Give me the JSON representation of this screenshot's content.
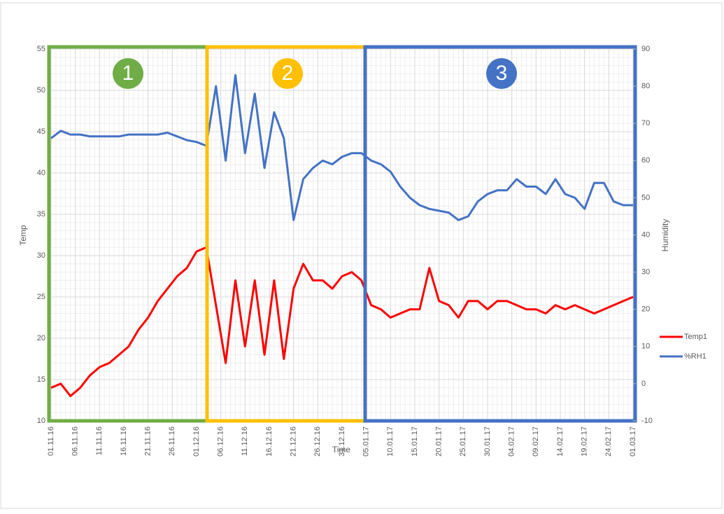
{
  "chart_data": {
    "type": "line",
    "x_label": "Time",
    "y_label": "Temp",
    "y2_label": "Humidity",
    "x": [
      "01.11.16",
      "03.11.16",
      "05.11.16",
      "07.11.16",
      "09.11.16",
      "11.11.16",
      "13.11.16",
      "15.11.16",
      "17.11.16",
      "19.11.16",
      "21.11.16",
      "23.11.16",
      "25.11.16",
      "27.11.16",
      "29.11.16",
      "01.12.16",
      "03.12.16",
      "05.12.16",
      "07.12.16",
      "09.12.16",
      "11.12.16",
      "13.12.16",
      "15.12.16",
      "17.12.16",
      "19.12.16",
      "21.12.16",
      "23.12.16",
      "25.12.16",
      "27.12.16",
      "29.12.16",
      "31.12.16",
      "02.01.17",
      "04.01.17",
      "06.01.17",
      "08.01.17",
      "10.01.17",
      "12.01.17",
      "14.01.17",
      "16.01.17",
      "18.01.17",
      "20.01.17",
      "22.01.17",
      "24.01.17",
      "26.01.17",
      "28.01.17",
      "30.01.17",
      "01.02.17",
      "03.02.17",
      "05.02.17",
      "07.02.17",
      "09.02.17",
      "11.02.17",
      "13.02.17",
      "15.02.17",
      "17.02.17",
      "19.02.17",
      "21.02.17",
      "23.02.17",
      "25.02.17",
      "27.02.17",
      "01.03.17"
    ],
    "series": [
      {
        "name": "Temp1",
        "color": "#ff0000",
        "axis": "y",
        "values": [
          14,
          14.5,
          13,
          14,
          15.5,
          16.5,
          17,
          18,
          19,
          21,
          22.5,
          24.5,
          26,
          27.5,
          28.5,
          30.5,
          31,
          24,
          17,
          27,
          19,
          27,
          18,
          27,
          17.5,
          26,
          29,
          27,
          27,
          26,
          27.5,
          28,
          27,
          24,
          23.5,
          22.5,
          23,
          23.5,
          23.5,
          28.5,
          24.5,
          24,
          22.5,
          24.5,
          24.5,
          23.5,
          24.5,
          24.5,
          24,
          23.5,
          23.5,
          23,
          24,
          23.5,
          24,
          23.5,
          23,
          23.5,
          24,
          24.5,
          25
        ]
      },
      {
        "name": "%RH1",
        "color": "#4472c4",
        "axis": "y2",
        "values": [
          66,
          68,
          67,
          67,
          66.5,
          66.5,
          66.5,
          66.5,
          67,
          67,
          67,
          67,
          67.5,
          66.5,
          65.5,
          65,
          64,
          80,
          60,
          83,
          62,
          78,
          58,
          73,
          66,
          44,
          55,
          58,
          60,
          59,
          61,
          62,
          62,
          60,
          59,
          57,
          53,
          50,
          48,
          47,
          46.5,
          46,
          44,
          45,
          49,
          51,
          52,
          52,
          55,
          53,
          53,
          51,
          55,
          51,
          50,
          47,
          54,
          54,
          49,
          48,
          48
        ]
      }
    ],
    "xlim": [
      "01.11.16",
      "01.03.17"
    ],
    "xticks": [
      "01.11.16",
      "06.11.16",
      "11.11.16",
      "16.11.16",
      "21.11.16",
      "26.11.16",
      "01.12.16",
      "06.12.16",
      "11.12.16",
      "16.12.16",
      "21.12.16",
      "26.12.16",
      "31.12.16",
      "05.01.17",
      "10.01.17",
      "15.01.17",
      "20.01.17",
      "25.01.17",
      "30.01.17",
      "04.02.17",
      "09.02.17",
      "14.02.17",
      "19.02.17",
      "24.02.17",
      "01.03.17"
    ],
    "ylim": [
      10,
      55
    ],
    "yticks": [
      10,
      15,
      20,
      25,
      30,
      35,
      40,
      45,
      50,
      55
    ],
    "y2lim": [
      -10,
      90
    ],
    "y2ticks": [
      -10,
      0,
      10,
      20,
      30,
      40,
      50,
      60,
      70,
      80,
      90
    ],
    "grid": true,
    "legend": "right",
    "annotations": [
      "1",
      "2",
      "3"
    ]
  }
}
